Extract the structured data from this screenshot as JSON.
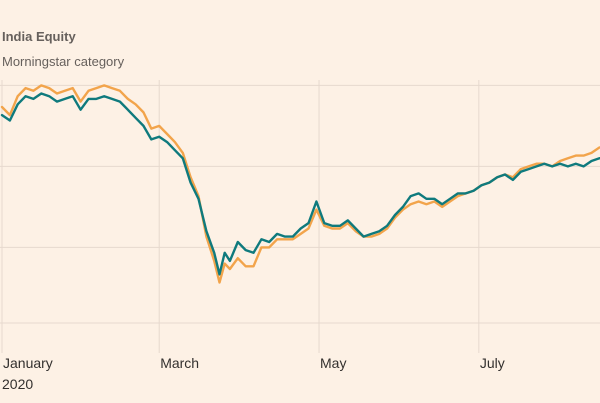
{
  "legend": {
    "primary_label": "India Equity",
    "secondary_label": "Morningstar category"
  },
  "colors": {
    "background": "#fdf1e5",
    "primary_series": "#0f7a7d",
    "secondary_series": "#f2a44b",
    "gridline": "#e6d9ce",
    "text": "#33302e"
  },
  "chart_data": {
    "type": "line",
    "title": "",
    "xlabel": "",
    "ylabel": "",
    "x_axis": {
      "ticks": [
        "January",
        "March",
        "May",
        "July"
      ],
      "year_label": "2020",
      "range": [
        "2020-01-01",
        "2020-08-20"
      ]
    },
    "y_axis": {
      "range": [
        0,
        100
      ],
      "tick_labels_shown": false,
      "grid_values": [
        10,
        38,
        68,
        98
      ]
    },
    "grid": "horizontal and vertical (at month ticks)",
    "series": [
      {
        "name": "India Equity",
        "color": "#0f7a7d",
        "points": [
          [
            "2020-01-01",
            87
          ],
          [
            "2020-01-04",
            85
          ],
          [
            "2020-01-07",
            91
          ],
          [
            "2020-01-10",
            94
          ],
          [
            "2020-01-13",
            93
          ],
          [
            "2020-01-16",
            95
          ],
          [
            "2020-01-19",
            94
          ],
          [
            "2020-01-22",
            92
          ],
          [
            "2020-01-25",
            93
          ],
          [
            "2020-01-28",
            94
          ],
          [
            "2020-01-31",
            89
          ],
          [
            "2020-02-03",
            93
          ],
          [
            "2020-02-06",
            93
          ],
          [
            "2020-02-09",
            94
          ],
          [
            "2020-02-12",
            93
          ],
          [
            "2020-02-15",
            92
          ],
          [
            "2020-02-18",
            89
          ],
          [
            "2020-02-21",
            86
          ],
          [
            "2020-02-24",
            83
          ],
          [
            "2020-02-27",
            78
          ],
          [
            "2020-03-01",
            79
          ],
          [
            "2020-03-04",
            77
          ],
          [
            "2020-03-07",
            74
          ],
          [
            "2020-03-10",
            71
          ],
          [
            "2020-03-13",
            62
          ],
          [
            "2020-03-16",
            56
          ],
          [
            "2020-03-19",
            44
          ],
          [
            "2020-03-22",
            36
          ],
          [
            "2020-03-24",
            28
          ],
          [
            "2020-03-26",
            36
          ],
          [
            "2020-03-28",
            33
          ],
          [
            "2020-03-31",
            40
          ],
          [
            "2020-04-03",
            37
          ],
          [
            "2020-04-06",
            36
          ],
          [
            "2020-04-09",
            41
          ],
          [
            "2020-04-12",
            40
          ],
          [
            "2020-04-15",
            43
          ],
          [
            "2020-04-18",
            42
          ],
          [
            "2020-04-21",
            42
          ],
          [
            "2020-04-24",
            45
          ],
          [
            "2020-04-27",
            47
          ],
          [
            "2020-04-30",
            55
          ],
          [
            "2020-05-03",
            47
          ],
          [
            "2020-05-06",
            46
          ],
          [
            "2020-05-09",
            46
          ],
          [
            "2020-05-12",
            48
          ],
          [
            "2020-05-15",
            45
          ],
          [
            "2020-05-18",
            42
          ],
          [
            "2020-05-21",
            43
          ],
          [
            "2020-05-24",
            44
          ],
          [
            "2020-05-27",
            46
          ],
          [
            "2020-05-30",
            50
          ],
          [
            "2020-06-02",
            53
          ],
          [
            "2020-06-05",
            57
          ],
          [
            "2020-06-08",
            58
          ],
          [
            "2020-06-11",
            56
          ],
          [
            "2020-06-14",
            56
          ],
          [
            "2020-06-17",
            54
          ],
          [
            "2020-06-20",
            56
          ],
          [
            "2020-06-23",
            58
          ],
          [
            "2020-06-26",
            58
          ],
          [
            "2020-06-29",
            59
          ],
          [
            "2020-07-02",
            61
          ],
          [
            "2020-07-05",
            62
          ],
          [
            "2020-07-08",
            64
          ],
          [
            "2020-07-11",
            65
          ],
          [
            "2020-07-14",
            63
          ],
          [
            "2020-07-17",
            66
          ],
          [
            "2020-07-20",
            67
          ],
          [
            "2020-07-23",
            68
          ],
          [
            "2020-07-26",
            69
          ],
          [
            "2020-07-29",
            68
          ],
          [
            "2020-08-01",
            69
          ],
          [
            "2020-08-04",
            68
          ],
          [
            "2020-08-07",
            69
          ],
          [
            "2020-08-10",
            68
          ],
          [
            "2020-08-13",
            70
          ],
          [
            "2020-08-16",
            71
          ],
          [
            "2020-08-20",
            72
          ]
        ]
      },
      {
        "name": "Morningstar category",
        "color": "#f2a44b",
        "points": [
          [
            "2020-01-01",
            90
          ],
          [
            "2020-01-04",
            87
          ],
          [
            "2020-01-07",
            94
          ],
          [
            "2020-01-10",
            97
          ],
          [
            "2020-01-13",
            96
          ],
          [
            "2020-01-16",
            98
          ],
          [
            "2020-01-19",
            97
          ],
          [
            "2020-01-22",
            95
          ],
          [
            "2020-01-25",
            96
          ],
          [
            "2020-01-28",
            97
          ],
          [
            "2020-01-31",
            92
          ],
          [
            "2020-02-03",
            96
          ],
          [
            "2020-02-06",
            97
          ],
          [
            "2020-02-09",
            98
          ],
          [
            "2020-02-12",
            97
          ],
          [
            "2020-02-15",
            96
          ],
          [
            "2020-02-18",
            93
          ],
          [
            "2020-02-21",
            91
          ],
          [
            "2020-02-24",
            88
          ],
          [
            "2020-02-27",
            82
          ],
          [
            "2020-03-01",
            83
          ],
          [
            "2020-03-04",
            80
          ],
          [
            "2020-03-07",
            77
          ],
          [
            "2020-03-10",
            73
          ],
          [
            "2020-03-13",
            64
          ],
          [
            "2020-03-16",
            57
          ],
          [
            "2020-03-19",
            42
          ],
          [
            "2020-03-22",
            33
          ],
          [
            "2020-03-24",
            25
          ],
          [
            "2020-03-26",
            32
          ],
          [
            "2020-03-28",
            30
          ],
          [
            "2020-03-31",
            34
          ],
          [
            "2020-04-03",
            31
          ],
          [
            "2020-04-06",
            31
          ],
          [
            "2020-04-09",
            38
          ],
          [
            "2020-04-12",
            38
          ],
          [
            "2020-04-15",
            41
          ],
          [
            "2020-04-18",
            41
          ],
          [
            "2020-04-21",
            41
          ],
          [
            "2020-04-24",
            43
          ],
          [
            "2020-04-27",
            45
          ],
          [
            "2020-04-30",
            52
          ],
          [
            "2020-05-03",
            46
          ],
          [
            "2020-05-06",
            45
          ],
          [
            "2020-05-09",
            45
          ],
          [
            "2020-05-12",
            47
          ],
          [
            "2020-05-15",
            44
          ],
          [
            "2020-05-18",
            42
          ],
          [
            "2020-05-21",
            42
          ],
          [
            "2020-05-24",
            43
          ],
          [
            "2020-05-27",
            45
          ],
          [
            "2020-05-30",
            49
          ],
          [
            "2020-06-02",
            52
          ],
          [
            "2020-06-05",
            54
          ],
          [
            "2020-06-08",
            55
          ],
          [
            "2020-06-11",
            54
          ],
          [
            "2020-06-14",
            55
          ],
          [
            "2020-06-17",
            53
          ],
          [
            "2020-06-20",
            55
          ],
          [
            "2020-06-23",
            57
          ],
          [
            "2020-06-26",
            58
          ],
          [
            "2020-06-29",
            59
          ],
          [
            "2020-07-02",
            61
          ],
          [
            "2020-07-05",
            62
          ],
          [
            "2020-07-08",
            64
          ],
          [
            "2020-07-11",
            65
          ],
          [
            "2020-07-14",
            64
          ],
          [
            "2020-07-17",
            67
          ],
          [
            "2020-07-20",
            68
          ],
          [
            "2020-07-23",
            69
          ],
          [
            "2020-07-26",
            69
          ],
          [
            "2020-07-29",
            68
          ],
          [
            "2020-08-01",
            70
          ],
          [
            "2020-08-04",
            71
          ],
          [
            "2020-08-07",
            72
          ],
          [
            "2020-08-10",
            72
          ],
          [
            "2020-08-13",
            73
          ],
          [
            "2020-08-16",
            75
          ],
          [
            "2020-08-20",
            76
          ]
        ]
      }
    ]
  }
}
